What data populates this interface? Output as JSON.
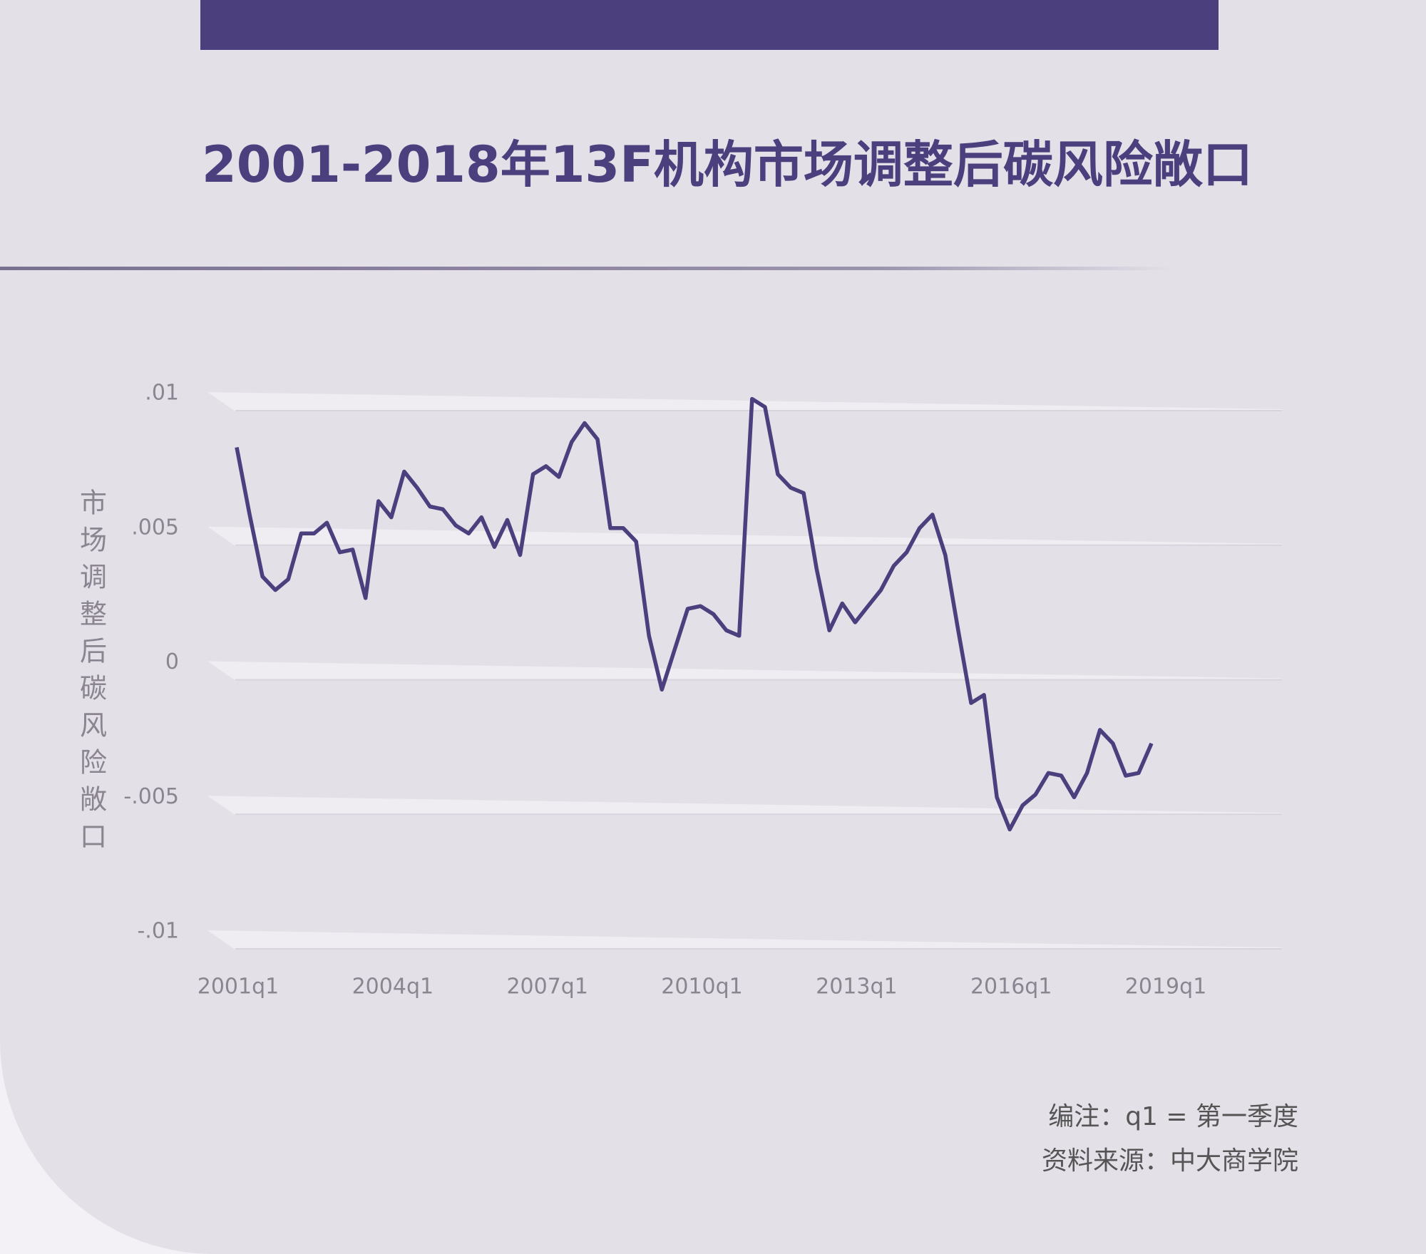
{
  "chart_data": {
    "type": "line",
    "title": "2001-2018年13F机构市场调整后碳风险敞口",
    "y_label": "市场调整后碳风险敞口",
    "notes": [
      "编注：q1 = 第一季度",
      "资料来源：中大商学院"
    ],
    "categories": [
      "2001q1",
      null,
      null,
      null,
      null,
      null,
      null,
      null,
      null,
      null,
      null,
      null,
      "2004q1",
      null,
      null,
      null,
      null,
      null,
      null,
      null,
      null,
      null,
      null,
      null,
      "2007q1",
      null,
      null,
      null,
      null,
      null,
      null,
      null,
      null,
      null,
      null,
      null,
      "2010q1",
      null,
      null,
      null,
      null,
      null,
      null,
      null,
      null,
      null,
      null,
      null,
      "2013q1",
      null,
      null,
      null,
      null,
      null,
      null,
      null,
      null,
      null,
      null,
      null,
      "2016q1",
      null,
      null,
      null,
      null,
      null,
      null,
      null,
      null,
      null,
      null,
      null,
      "2019q1"
    ],
    "series": [
      {
        "name": "市场调整后碳风险敞口",
        "color": "#4b3f7d",
        "values": [
          0.008,
          0.0055,
          0.0032,
          0.0027,
          0.0031,
          0.0048,
          0.0048,
          0.0052,
          0.0041,
          0.0042,
          0.0024,
          0.006,
          0.0054,
          0.0071,
          0.0065,
          0.0058,
          0.0057,
          0.0051,
          0.0048,
          0.0054,
          0.0043,
          0.0053,
          0.004,
          0.007,
          0.0073,
          0.0069,
          0.0082,
          0.0089,
          0.0083,
          0.005,
          0.005,
          0.0045,
          0.001,
          -0.001,
          0.0005,
          0.002,
          0.0021,
          0.0018,
          0.0012,
          0.001,
          0.0098,
          0.0095,
          0.007,
          0.0065,
          0.0063,
          0.0035,
          0.0012,
          0.0022,
          0.0015,
          0.0021,
          0.0027,
          0.0036,
          0.0041,
          0.005,
          0.0055,
          0.004,
          0.0012,
          -0.0015,
          -0.0012,
          -0.005,
          -0.0062,
          -0.0053,
          -0.0049,
          -0.0041,
          -0.0042,
          -0.005,
          -0.0041,
          -0.0025,
          -0.003,
          -0.0042,
          -0.0041,
          -0.003,
          null
        ]
      }
    ],
    "ylim": [
      -0.01,
      0.01
    ],
    "yticks": [
      {
        "value": 0.01,
        "label": ".01"
      },
      {
        "value": 0.005,
        "label": ".005"
      },
      0,
      {
        "value": -0.005,
        "label": "-.005"
      },
      {
        "value": -0.01,
        "label": "-.01"
      }
    ],
    "grid": true
  }
}
